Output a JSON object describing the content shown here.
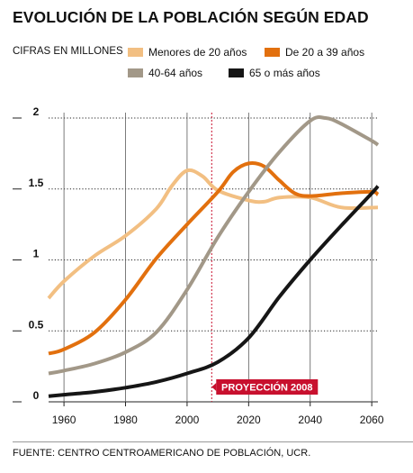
{
  "chart_data": {
    "type": "line",
    "title": "EVOLUCIÓN DE LA POBLACIÓN SEGÚN EDAD",
    "units_label": "CIFRAS EN MILLONES",
    "xlim": [
      1955,
      2062
    ],
    "ylim": [
      0,
      2
    ],
    "x_ticks": [
      1960,
      1980,
      2000,
      2020,
      2040,
      2060
    ],
    "y_ticks": [
      0,
      0.5,
      1,
      1.5,
      2
    ],
    "y_tick_labels": [
      "0",
      "0.5",
      "1",
      "1.5",
      "2"
    ],
    "grid": "vertical lines at x ticks, dotted horizontal lines at y ticks",
    "annotation": {
      "text": "PROYECCIÓN 2008",
      "x": 2008,
      "color": "#c8102e"
    },
    "series": [
      {
        "name": "Menores de 20 años",
        "color": "#f2bf82",
        "x": [
          1955,
          1960,
          1970,
          1980,
          1990,
          1995,
          2000,
          2005,
          2010,
          2020,
          2025,
          2030,
          2040,
          2050,
          2062
        ],
        "y": [
          0.73,
          0.85,
          1.03,
          1.17,
          1.36,
          1.52,
          1.63,
          1.59,
          1.49,
          1.42,
          1.41,
          1.44,
          1.44,
          1.37,
          1.37
        ]
      },
      {
        "name": "De 20 a 39 años",
        "color": "#e2700e",
        "x": [
          1955,
          1960,
          1970,
          1980,
          1990,
          2000,
          2010,
          2015,
          2020,
          2025,
          2030,
          2035,
          2040,
          2050,
          2060,
          2062
        ],
        "y": [
          0.34,
          0.37,
          0.49,
          0.72,
          1.01,
          1.25,
          1.48,
          1.62,
          1.68,
          1.66,
          1.56,
          1.47,
          1.45,
          1.47,
          1.48,
          1.46
        ]
      },
      {
        "name": "40-64 años",
        "color": "#a29888",
        "x": [
          1955,
          1960,
          1970,
          1980,
          1990,
          2000,
          2010,
          2020,
          2030,
          2040,
          2045,
          2050,
          2060,
          2062
        ],
        "y": [
          0.2,
          0.22,
          0.27,
          0.35,
          0.49,
          0.79,
          1.16,
          1.48,
          1.76,
          1.98,
          2.0,
          1.96,
          1.84,
          1.81
        ]
      },
      {
        "name": "65 o más años",
        "color": "#161616",
        "x": [
          1955,
          1960,
          1970,
          1980,
          1990,
          2000,
          2010,
          2020,
          2030,
          2040,
          2050,
          2060,
          2062
        ],
        "y": [
          0.04,
          0.05,
          0.07,
          0.1,
          0.14,
          0.2,
          0.28,
          0.45,
          0.74,
          1.0,
          1.24,
          1.47,
          1.52
        ]
      }
    ]
  },
  "source": "FUENTE: CENTRO CENTROAMERICANO DE POBLACIÓN, UCR."
}
